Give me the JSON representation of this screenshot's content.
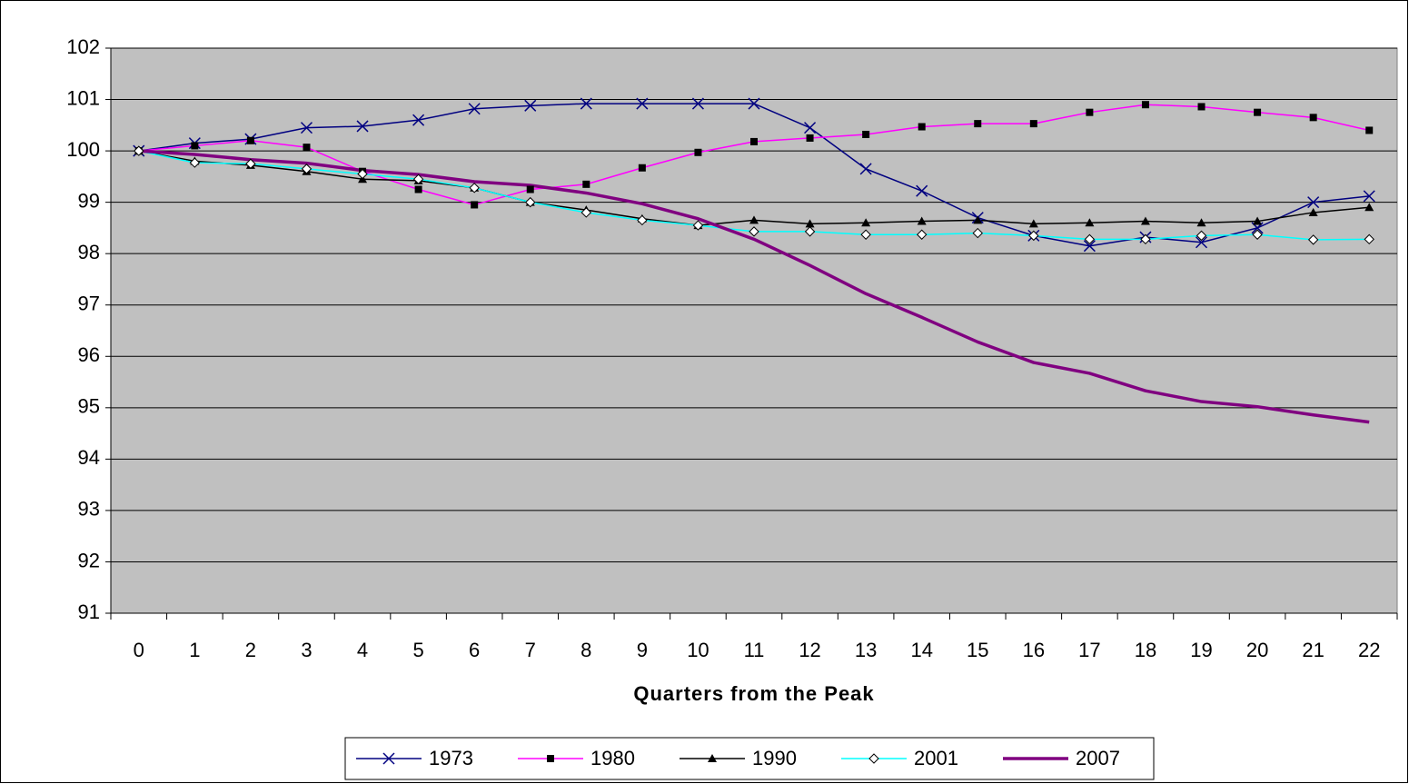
{
  "chart_data": {
    "type": "line",
    "x_label": "Quarters from the Peak",
    "categories": [
      "0",
      "1",
      "2",
      "3",
      "4",
      "5",
      "6",
      "7",
      "8",
      "9",
      "10",
      "11",
      "12",
      "13",
      "14",
      "15",
      "16",
      "17",
      "18",
      "19",
      "20",
      "21",
      "22"
    ],
    "ylim": [
      91,
      102
    ],
    "yticks": [
      91,
      92,
      93,
      94,
      95,
      96,
      97,
      98,
      99,
      100,
      101,
      102
    ],
    "grid": true,
    "plot_background": "#c0c0c0",
    "legend": "bottom",
    "series": [
      {
        "name": "1973",
        "color": "#000080",
        "marker": "x",
        "line_width": 1.5,
        "values": [
          100,
          100.15,
          100.23,
          100.45,
          100.48,
          100.6,
          100.82,
          100.88,
          100.92,
          100.92,
          100.92,
          100.92,
          100.45,
          99.65,
          99.22,
          98.7,
          98.35,
          98.15,
          98.32,
          98.22,
          98.5,
          99.0,
          99.12
        ]
      },
      {
        "name": "1980",
        "color": "#ff00ff",
        "marker": "square",
        "line_width": 1.5,
        "values": [
          100,
          100.1,
          100.2,
          100.07,
          99.6,
          99.25,
          98.95,
          99.25,
          99.35,
          99.67,
          99.97,
          100.18,
          100.25,
          100.32,
          100.47,
          100.53,
          100.53,
          100.75,
          100.9,
          100.86,
          100.75,
          100.65,
          100.4
        ]
      },
      {
        "name": "1990",
        "color": "#000000",
        "marker": "triangle",
        "line_width": 1.5,
        "values": [
          100,
          99.8,
          99.72,
          99.6,
          99.45,
          99.42,
          99.28,
          99.0,
          98.85,
          98.68,
          98.55,
          98.65,
          98.58,
          98.6,
          98.63,
          98.65,
          98.58,
          98.6,
          98.63,
          98.6,
          98.63,
          98.8,
          98.9
        ]
      },
      {
        "name": "2001",
        "color": "#00ffff",
        "marker": "diamond",
        "line_width": 1.5,
        "values": [
          100,
          99.77,
          99.75,
          99.65,
          99.55,
          99.45,
          99.28,
          99.0,
          98.8,
          98.65,
          98.55,
          98.43,
          98.43,
          98.37,
          98.37,
          98.4,
          98.35,
          98.28,
          98.28,
          98.35,
          98.37,
          98.27,
          98.28
        ]
      },
      {
        "name": "2007",
        "color": "#800080",
        "marker": "none",
        "line_width": 3.5,
        "values": [
          100,
          99.93,
          99.83,
          99.76,
          99.62,
          99.54,
          99.4,
          99.33,
          99.18,
          98.97,
          98.68,
          98.28,
          97.77,
          97.22,
          96.76,
          96.28,
          95.88,
          95.67,
          95.33,
          95.12,
          95.02,
          94.86,
          94.72
        ]
      }
    ]
  }
}
